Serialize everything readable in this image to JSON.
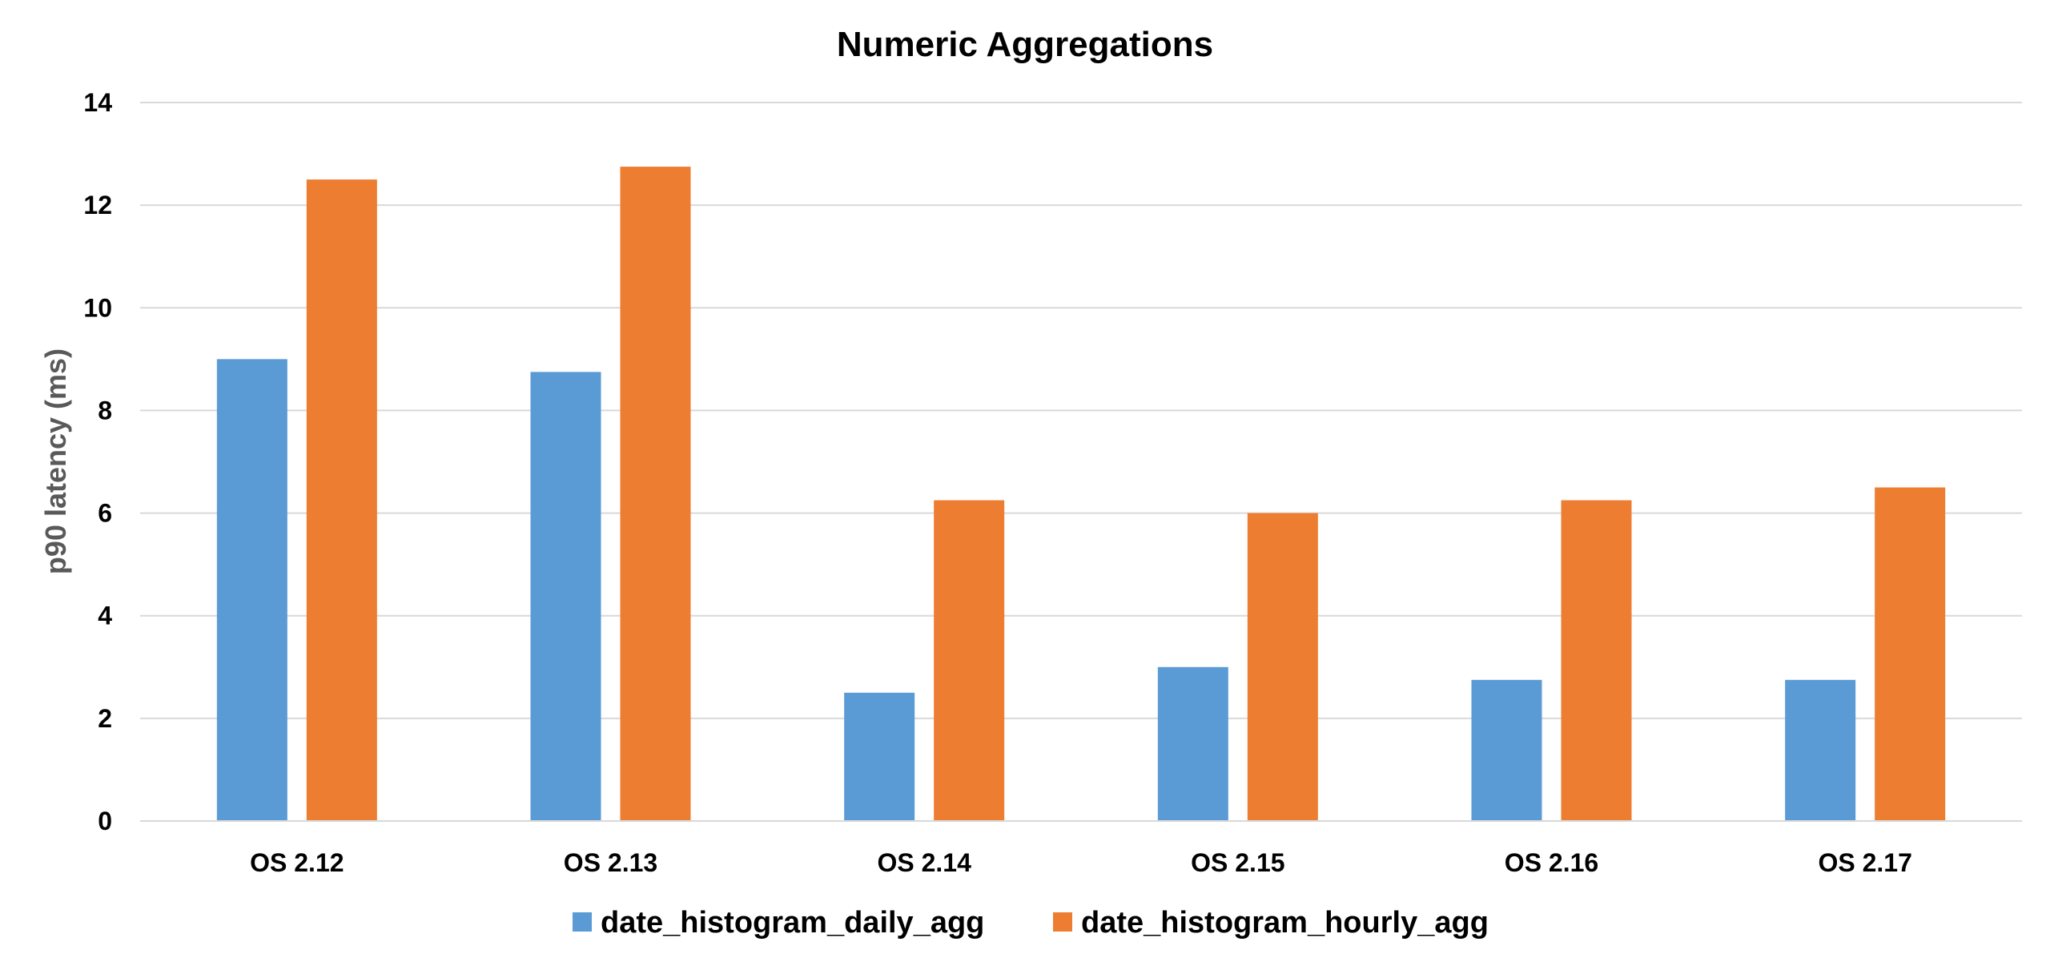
{
  "chart_data": {
    "type": "bar",
    "title": "Numeric Aggregations",
    "xlabel": "",
    "ylabel": "p90 latency (ms)",
    "ylim": [
      0,
      14
    ],
    "yticks": [
      0,
      2,
      4,
      6,
      8,
      10,
      12,
      14
    ],
    "grid": true,
    "legend_position": "bottom",
    "categories": [
      "OS 2.12",
      "OS 2.13",
      "OS 2.14",
      "OS 2.15",
      "OS 2.16",
      "OS 2.17"
    ],
    "series": [
      {
        "name": "date_histogram_daily_agg",
        "color": "#5B9BD5",
        "values": [
          9.0,
          8.75,
          2.5,
          3.0,
          2.75,
          2.75
        ]
      },
      {
        "name": "date_histogram_hourly_agg",
        "color": "#ED7D31",
        "values": [
          12.5,
          12.75,
          6.25,
          6.0,
          6.25,
          6.5
        ]
      }
    ]
  }
}
